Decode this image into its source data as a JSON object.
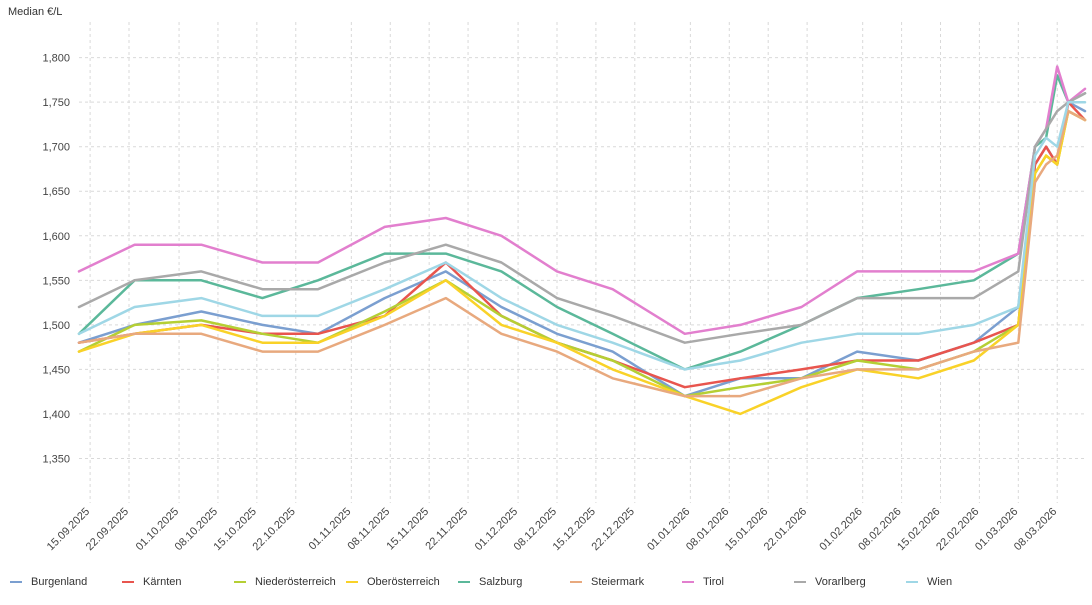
{
  "chart_data": {
    "type": "line",
    "ylabel": "Median €/L",
    "ylim": [
      1.3,
      1.84
    ],
    "y_ticks": [
      1.35,
      1.4,
      1.45,
      1.5,
      1.55,
      1.6,
      1.65,
      1.7,
      1.75,
      1.8
    ],
    "y_tick_labels": [
      "1,350",
      "1,400",
      "1,450",
      "1,500",
      "1,550",
      "1,600",
      "1,650",
      "1,700",
      "1,750",
      "1,800"
    ],
    "x_range": [
      "2025-09-13",
      "2026-03-13"
    ],
    "x_ticks": [
      "2025-09-15",
      "2025-09-22",
      "2025-10-01",
      "2025-10-08",
      "2025-10-15",
      "2025-10-22",
      "2025-11-01",
      "2025-11-08",
      "2025-11-15",
      "2025-11-22",
      "2025-12-01",
      "2025-12-08",
      "2025-12-15",
      "2025-12-22",
      "2026-01-01",
      "2026-01-08",
      "2026-01-15",
      "2026-01-22",
      "2026-02-01",
      "2026-02-08",
      "2026-02-15",
      "2026-02-22",
      "2026-03-01",
      "2026-03-08"
    ],
    "x_tick_labels": [
      "15.09.2025",
      "22.09.2025",
      "01.10.2025",
      "08.10.2025",
      "15.10.2025",
      "22.10.2025",
      "01.11.2025",
      "08.11.2025",
      "15.11.2025",
      "22.11.2025",
      "01.12.2025",
      "08.12.2025",
      "15.12.2025",
      "22.12.2025",
      "01.01.2026",
      "08.01.2026",
      "15.01.2026",
      "22.01.2026",
      "01.02.2026",
      "08.02.2026",
      "15.02.2026",
      "22.02.2026",
      "01.03.2026",
      "08.03.2026"
    ],
    "grid": true,
    "legend_position": "bottom",
    "series": [
      {
        "name": "Burgenland",
        "color": "#7b9fd0",
        "points": [
          [
            "2025-09-13",
            1.48
          ],
          [
            "2025-09-23",
            1.5
          ],
          [
            "2025-10-05",
            1.515
          ],
          [
            "2025-10-16",
            1.5
          ],
          [
            "2025-10-26",
            1.49
          ],
          [
            "2025-11-07",
            1.53
          ],
          [
            "2025-11-18",
            1.56
          ],
          [
            "2025-11-28",
            1.52
          ],
          [
            "2025-12-08",
            1.49
          ],
          [
            "2025-12-18",
            1.47
          ],
          [
            "2025-12-31",
            1.42
          ],
          [
            "2026-01-10",
            1.44
          ],
          [
            "2026-01-21",
            1.44
          ],
          [
            "2026-01-31",
            1.47
          ],
          [
            "2026-02-11",
            1.46
          ],
          [
            "2026-02-21",
            1.48
          ],
          [
            "2026-03-01",
            1.52
          ],
          [
            "2026-03-04",
            1.68
          ],
          [
            "2026-03-06",
            1.7
          ],
          [
            "2026-03-08",
            1.68
          ],
          [
            "2026-03-10",
            1.75
          ],
          [
            "2026-03-13",
            1.74
          ]
        ]
      },
      {
        "name": "Kärnten",
        "color": "#e8554e",
        "points": [
          [
            "2025-09-13",
            1.48
          ],
          [
            "2025-09-23",
            1.49
          ],
          [
            "2025-10-05",
            1.5
          ],
          [
            "2025-10-16",
            1.49
          ],
          [
            "2025-10-26",
            1.49
          ],
          [
            "2025-11-07",
            1.51
          ],
          [
            "2025-11-18",
            1.57
          ],
          [
            "2025-11-28",
            1.51
          ],
          [
            "2025-12-08",
            1.48
          ],
          [
            "2025-12-18",
            1.46
          ],
          [
            "2025-12-31",
            1.43
          ],
          [
            "2026-01-10",
            1.44
          ],
          [
            "2026-01-21",
            1.45
          ],
          [
            "2026-01-31",
            1.46
          ],
          [
            "2026-02-11",
            1.46
          ],
          [
            "2026-02-21",
            1.48
          ],
          [
            "2026-03-01",
            1.5
          ],
          [
            "2026-03-04",
            1.68
          ],
          [
            "2026-03-06",
            1.7
          ],
          [
            "2026-03-08",
            1.68
          ],
          [
            "2026-03-10",
            1.75
          ],
          [
            "2026-03-13",
            1.73
          ]
        ]
      },
      {
        "name": "Niederösterreich",
        "color": "#b5cf34",
        "points": [
          [
            "2025-09-13",
            1.47
          ],
          [
            "2025-09-23",
            1.5
          ],
          [
            "2025-10-05",
            1.505
          ],
          [
            "2025-10-16",
            1.49
          ],
          [
            "2025-10-26",
            1.48
          ],
          [
            "2025-11-07",
            1.515
          ],
          [
            "2025-11-18",
            1.55
          ],
          [
            "2025-11-28",
            1.51
          ],
          [
            "2025-12-08",
            1.48
          ],
          [
            "2025-12-18",
            1.46
          ],
          [
            "2025-12-31",
            1.42
          ],
          [
            "2026-01-10",
            1.43
          ],
          [
            "2026-01-21",
            1.44
          ],
          [
            "2026-01-31",
            1.46
          ],
          [
            "2026-02-11",
            1.45
          ],
          [
            "2026-02-21",
            1.47
          ],
          [
            "2026-03-01",
            1.5
          ],
          [
            "2026-03-04",
            1.67
          ],
          [
            "2026-03-06",
            1.69
          ],
          [
            "2026-03-08",
            1.68
          ],
          [
            "2026-03-10",
            1.74
          ],
          [
            "2026-03-13",
            1.73
          ]
        ]
      },
      {
        "name": "Oberösterreich",
        "color": "#f9d228",
        "points": [
          [
            "2025-09-13",
            1.47
          ],
          [
            "2025-09-23",
            1.49
          ],
          [
            "2025-10-05",
            1.5
          ],
          [
            "2025-10-16",
            1.48
          ],
          [
            "2025-10-26",
            1.48
          ],
          [
            "2025-11-07",
            1.51
          ],
          [
            "2025-11-18",
            1.55
          ],
          [
            "2025-11-28",
            1.5
          ],
          [
            "2025-12-08",
            1.48
          ],
          [
            "2025-12-18",
            1.45
          ],
          [
            "2025-12-31",
            1.42
          ],
          [
            "2026-01-10",
            1.4
          ],
          [
            "2026-01-21",
            1.43
          ],
          [
            "2026-01-31",
            1.45
          ],
          [
            "2026-02-11",
            1.44
          ],
          [
            "2026-02-21",
            1.46
          ],
          [
            "2026-03-01",
            1.5
          ],
          [
            "2026-03-04",
            1.67
          ],
          [
            "2026-03-06",
            1.69
          ],
          [
            "2026-03-08",
            1.68
          ],
          [
            "2026-03-10",
            1.74
          ],
          [
            "2026-03-13",
            1.73
          ]
        ]
      },
      {
        "name": "Salzburg",
        "color": "#5bb89a",
        "points": [
          [
            "2025-09-13",
            1.49
          ],
          [
            "2025-09-23",
            1.55
          ],
          [
            "2025-10-05",
            1.55
          ],
          [
            "2025-10-16",
            1.53
          ],
          [
            "2025-10-26",
            1.55
          ],
          [
            "2025-11-07",
            1.58
          ],
          [
            "2025-11-18",
            1.58
          ],
          [
            "2025-11-28",
            1.56
          ],
          [
            "2025-12-08",
            1.52
          ],
          [
            "2025-12-18",
            1.49
          ],
          [
            "2025-12-31",
            1.45
          ],
          [
            "2026-01-10",
            1.47
          ],
          [
            "2026-01-21",
            1.5
          ],
          [
            "2026-01-31",
            1.53
          ],
          [
            "2026-02-11",
            1.54
          ],
          [
            "2026-02-21",
            1.55
          ],
          [
            "2026-03-01",
            1.58
          ],
          [
            "2026-03-04",
            1.7
          ],
          [
            "2026-03-06",
            1.71
          ],
          [
            "2026-03-08",
            1.78
          ],
          [
            "2026-03-10",
            1.75
          ],
          [
            "2026-03-13",
            1.76
          ]
        ]
      },
      {
        "name": "Steiermark",
        "color": "#e8a97e",
        "points": [
          [
            "2025-09-13",
            1.48
          ],
          [
            "2025-09-23",
            1.49
          ],
          [
            "2025-10-05",
            1.49
          ],
          [
            "2025-10-16",
            1.47
          ],
          [
            "2025-10-26",
            1.47
          ],
          [
            "2025-11-07",
            1.5
          ],
          [
            "2025-11-18",
            1.53
          ],
          [
            "2025-11-28",
            1.49
          ],
          [
            "2025-12-08",
            1.47
          ],
          [
            "2025-12-18",
            1.44
          ],
          [
            "2025-12-31",
            1.42
          ],
          [
            "2026-01-10",
            1.42
          ],
          [
            "2026-01-21",
            1.44
          ],
          [
            "2026-01-31",
            1.45
          ],
          [
            "2026-02-11",
            1.45
          ],
          [
            "2026-02-21",
            1.47
          ],
          [
            "2026-03-01",
            1.48
          ],
          [
            "2026-03-04",
            1.66
          ],
          [
            "2026-03-06",
            1.68
          ],
          [
            "2026-03-08",
            1.69
          ],
          [
            "2026-03-10",
            1.74
          ],
          [
            "2026-03-13",
            1.73
          ]
        ]
      },
      {
        "name": "Tirol",
        "color": "#e27fce",
        "points": [
          [
            "2025-09-13",
            1.56
          ],
          [
            "2025-09-23",
            1.59
          ],
          [
            "2025-10-05",
            1.59
          ],
          [
            "2025-10-16",
            1.57
          ],
          [
            "2025-10-26",
            1.57
          ],
          [
            "2025-11-07",
            1.61
          ],
          [
            "2025-11-18",
            1.62
          ],
          [
            "2025-11-28",
            1.6
          ],
          [
            "2025-12-08",
            1.56
          ],
          [
            "2025-12-18",
            1.54
          ],
          [
            "2025-12-31",
            1.49
          ],
          [
            "2026-01-10",
            1.5
          ],
          [
            "2026-01-21",
            1.52
          ],
          [
            "2026-01-31",
            1.56
          ],
          [
            "2026-02-11",
            1.56
          ],
          [
            "2026-02-21",
            1.56
          ],
          [
            "2026-03-01",
            1.58
          ],
          [
            "2026-03-04",
            1.7
          ],
          [
            "2026-03-06",
            1.72
          ],
          [
            "2026-03-08",
            1.79
          ],
          [
            "2026-03-10",
            1.75
          ],
          [
            "2026-03-13",
            1.765
          ]
        ]
      },
      {
        "name": "Vorarlberg",
        "color": "#a9a9a9",
        "points": [
          [
            "2025-09-13",
            1.52
          ],
          [
            "2025-09-23",
            1.55
          ],
          [
            "2025-10-05",
            1.56
          ],
          [
            "2025-10-16",
            1.54
          ],
          [
            "2025-10-26",
            1.54
          ],
          [
            "2025-11-07",
            1.57
          ],
          [
            "2025-11-18",
            1.59
          ],
          [
            "2025-11-28",
            1.57
          ],
          [
            "2025-12-08",
            1.53
          ],
          [
            "2025-12-18",
            1.51
          ],
          [
            "2025-12-31",
            1.48
          ],
          [
            "2026-01-10",
            1.49
          ],
          [
            "2026-01-21",
            1.5
          ],
          [
            "2026-01-31",
            1.53
          ],
          [
            "2026-02-11",
            1.53
          ],
          [
            "2026-02-21",
            1.53
          ],
          [
            "2026-03-01",
            1.56
          ],
          [
            "2026-03-04",
            1.7
          ],
          [
            "2026-03-06",
            1.72
          ],
          [
            "2026-03-08",
            1.74
          ],
          [
            "2026-03-10",
            1.75
          ],
          [
            "2026-03-13",
            1.76
          ]
        ]
      },
      {
        "name": "Wien",
        "color": "#9fd7e6",
        "points": [
          [
            "2025-09-13",
            1.49
          ],
          [
            "2025-09-23",
            1.52
          ],
          [
            "2025-10-05",
            1.53
          ],
          [
            "2025-10-16",
            1.51
          ],
          [
            "2025-10-26",
            1.51
          ],
          [
            "2025-11-07",
            1.54
          ],
          [
            "2025-11-18",
            1.57
          ],
          [
            "2025-11-28",
            1.53
          ],
          [
            "2025-12-08",
            1.5
          ],
          [
            "2025-12-18",
            1.48
          ],
          [
            "2025-12-31",
            1.45
          ],
          [
            "2026-01-10",
            1.46
          ],
          [
            "2026-01-21",
            1.48
          ],
          [
            "2026-01-31",
            1.49
          ],
          [
            "2026-02-11",
            1.49
          ],
          [
            "2026-02-21",
            1.5
          ],
          [
            "2026-03-01",
            1.52
          ],
          [
            "2026-03-04",
            1.69
          ],
          [
            "2026-03-06",
            1.71
          ],
          [
            "2026-03-08",
            1.7
          ],
          [
            "2026-03-10",
            1.75
          ],
          [
            "2026-03-13",
            1.75
          ]
        ]
      }
    ]
  }
}
